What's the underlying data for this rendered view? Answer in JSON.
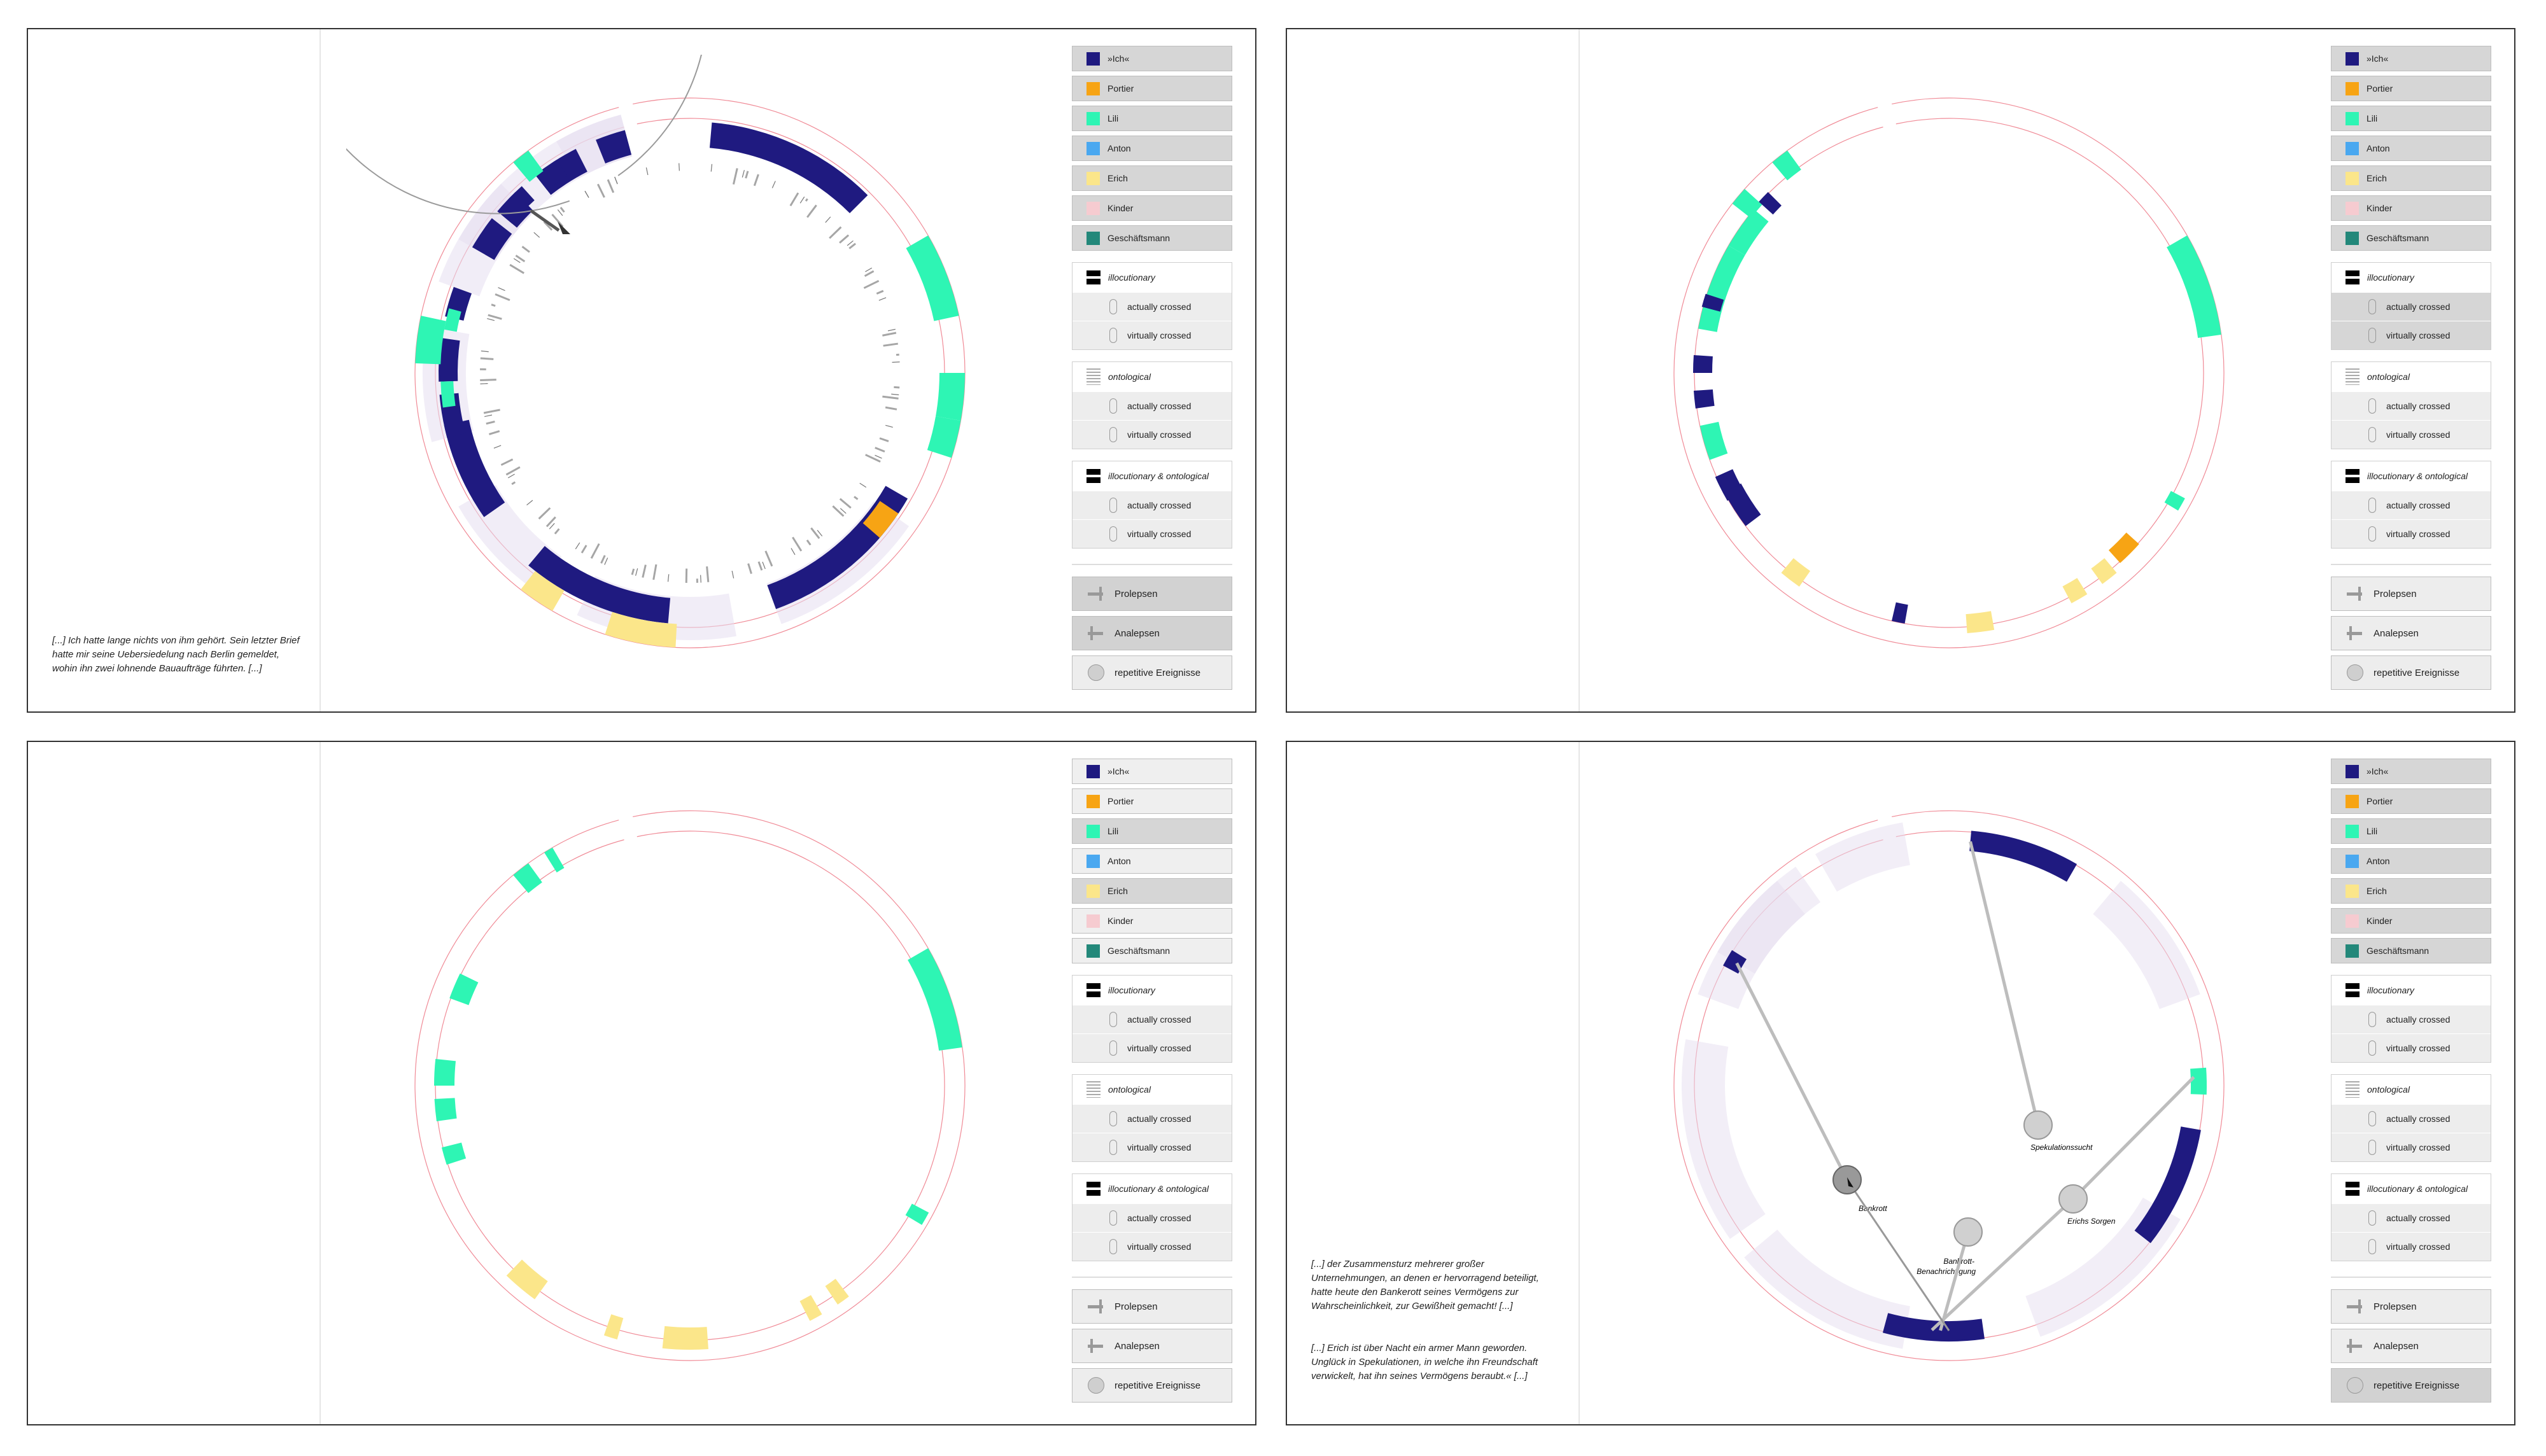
{
  "legend": {
    "characters": [
      {
        "label": "»Ich«",
        "color": "#1f1a80"
      },
      {
        "label": "Portier",
        "color": "#f7a414"
      },
      {
        "label": "Lili",
        "color": "#2ef5b4"
      },
      {
        "label": "Anton",
        "color": "#4aa8f0"
      },
      {
        "label": "Erich",
        "color": "#fbe68a"
      },
      {
        "label": "Kinder",
        "color": "#f6cbd0"
      },
      {
        "label": "Geschäftsmann",
        "color": "#23887a"
      }
    ],
    "groups": [
      {
        "title": "illocutionary",
        "rows": [
          "actually crossed",
          "virtually crossed"
        ]
      },
      {
        "title": "ontological",
        "rows": [
          "actually crossed",
          "virtually crossed"
        ]
      },
      {
        "title": "illocutionary & ontological",
        "rows": [
          "actually crossed",
          "virtually crossed"
        ]
      }
    ],
    "nav": [
      "Prolepsen",
      "Analepsen",
      "repetitive Ereignisse"
    ]
  },
  "colors": {
    "ich": "#1f1a80",
    "portier": "#f7a414",
    "lili": "#2ef5b4",
    "erich": "#fbe68a",
    "kinder": "#e5def0",
    "geschaeftsmann": "#23887a",
    "ring": "#f08a96",
    "grey": "#9a9a9a"
  },
  "panels": [
    {
      "quote": "[...] Ich hatte lange nichts von ihm gehört. Sein letzter Brief hatte mir seine Uebersiedelung nach Berlin gemeldet, wohin ihn zwei lohnende Bauaufträge führten. [...]",
      "legend_on": [
        0,
        1,
        2,
        3,
        4,
        5,
        6
      ],
      "active_nav": [
        0,
        1
      ]
    },
    {
      "quote": "",
      "legend_on": [
        0,
        1,
        2,
        3,
        4,
        5,
        6
      ],
      "active_nav": []
    },
    {
      "quote": "",
      "legend_on": [
        2,
        4
      ],
      "active_nav": []
    },
    {
      "quote": "[...] der Zusammensturz mehrerer großer Unternehmungen, an denen er hervorragend beteiligt, hatte heute den Bankerott seines Vermögens zur Wahrscheinlichkeit, zur Gewißheit gemacht! [...]",
      "quote2": "[...] Erich ist über Nacht ein armer Mann geworden. Unglück in Spekulationen, in welche ihn Freundschaft verwickelt, hat ihn seines Vermögens beraubt.« [...]",
      "legend_on": [
        0,
        1,
        2,
        3,
        4,
        5,
        6
      ],
      "active_nav": [
        2
      ]
    }
  ],
  "nodes": [
    {
      "label": "Spekulationssucht"
    },
    {
      "label": "Bankrott"
    },
    {
      "label": "Erichs Sorgen"
    },
    {
      "label": "Bankrott-"
    },
    {
      "label": "Benachrichtigung"
    }
  ]
}
